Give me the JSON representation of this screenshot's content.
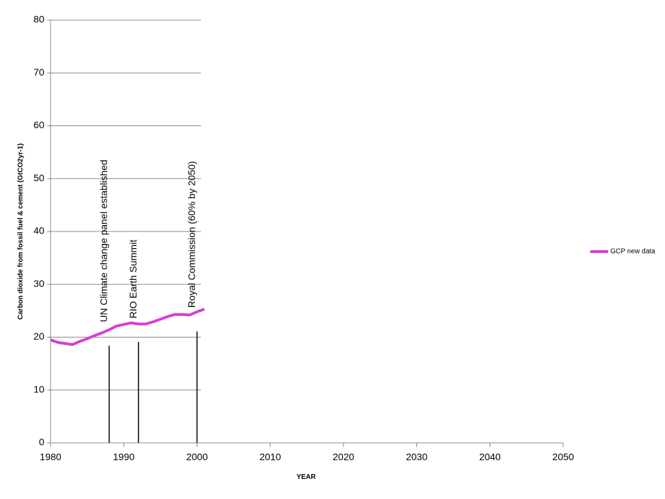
{
  "chart_data": {
    "type": "line",
    "y_label": "Carbon dioxide from fossil fuel & cement (GtCO2yr-1)",
    "x_label": "YEAR",
    "x": [
      1980,
      1981,
      1982,
      1983,
      1984,
      1985,
      1986,
      1987,
      1988,
      1989,
      1990,
      1991,
      1992,
      1993,
      1994,
      1995,
      1996,
      1997,
      1998,
      1999,
      2000,
      2001
    ],
    "series": [
      {
        "name": "GCP new data",
        "color": "#d63fd3",
        "values": [
          19.5,
          19.0,
          18.8,
          18.6,
          19.2,
          19.7,
          20.3,
          20.8,
          21.4,
          22.1,
          22.4,
          22.7,
          22.5,
          22.5,
          22.9,
          23.4,
          23.9,
          24.3,
          24.3,
          24.2,
          24.8,
          25.3
        ]
      }
    ],
    "annotations": [
      {
        "text": "UN Climate change panel established",
        "x": 1988,
        "y": 18.4
      },
      {
        "text": "RIO Earth Summit",
        "x": 1992,
        "y": 19.1
      },
      {
        "text": "Royal Commission (60% by 2050)",
        "x": 2000,
        "y": 21.1
      }
    ],
    "xlim": [
      1980,
      2050
    ],
    "xticks": [
      1980,
      1990,
      2000,
      2010,
      2020,
      2030,
      2040,
      2050
    ],
    "ylim": [
      0,
      80
    ],
    "yticks": [
      0,
      10,
      20,
      30,
      40,
      50,
      60,
      70,
      80
    ],
    "grid": true,
    "legend": "right"
  }
}
